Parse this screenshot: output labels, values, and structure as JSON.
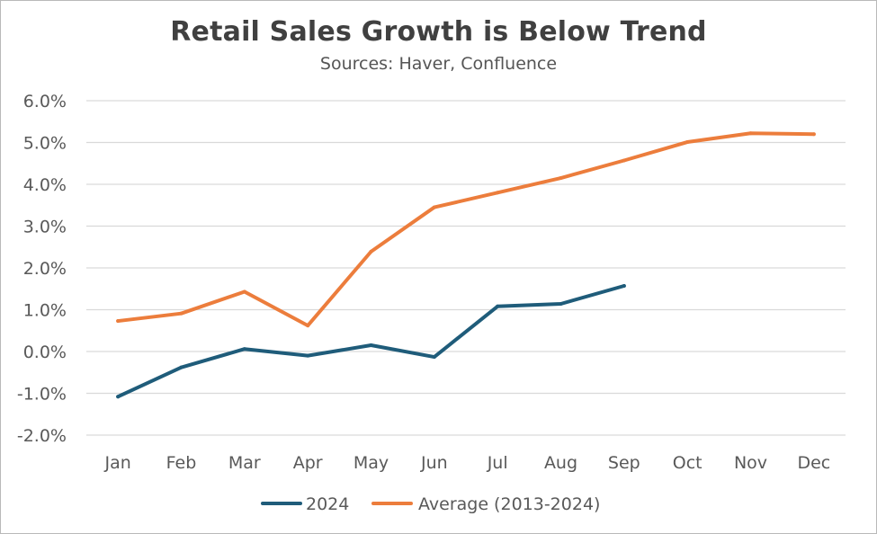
{
  "chart_data": {
    "type": "line",
    "title": "Retail Sales Growth is Below Trend",
    "subtitle": "Sources: Haver, Confluence",
    "categories": [
      "Jan",
      "Feb",
      "Mar",
      "Apr",
      "May",
      "Jun",
      "Jul",
      "Aug",
      "Sep",
      "Oct",
      "Nov",
      "Dec"
    ],
    "ylim": [
      -2.0,
      6.0
    ],
    "yticks": [
      -2.0,
      -1.0,
      0.0,
      1.0,
      2.0,
      3.0,
      4.0,
      5.0,
      6.0
    ],
    "ytick_labels": [
      "-2.0%",
      "-1.0%",
      "0.0%",
      "1.0%",
      "2.0%",
      "3.0%",
      "4.0%",
      "5.0%",
      "6.0%"
    ],
    "grid": true,
    "legend_position": "bottom",
    "series": [
      {
        "name": "2024",
        "color": "#1f5c7a",
        "values": [
          -1.08,
          -0.38,
          0.06,
          -0.1,
          0.15,
          -0.13,
          1.08,
          1.14,
          1.57,
          null,
          null,
          null
        ]
      },
      {
        "name": "Average (2013-2024)",
        "color": "#ec7d3c",
        "values": [
          0.73,
          0.91,
          1.43,
          0.62,
          2.39,
          3.45,
          3.8,
          4.15,
          4.57,
          5.01,
          5.22,
          5.2
        ]
      }
    ]
  }
}
